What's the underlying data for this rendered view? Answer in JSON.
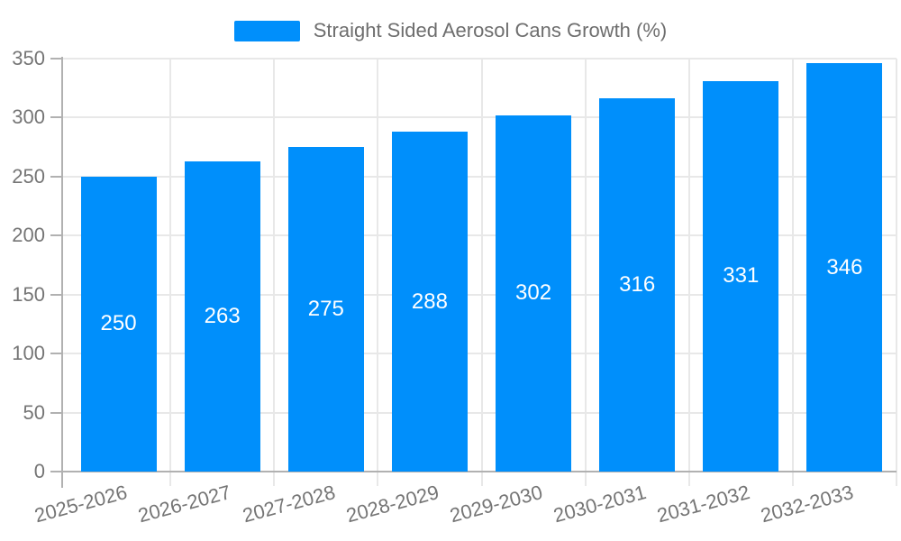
{
  "chart_data": {
    "type": "bar",
    "title": "Straight Sided Aerosol Cans Growth (%)",
    "series": [
      {
        "name": "Straight Sided Aerosol Cans Growth (%)",
        "values": [
          250,
          263,
          275,
          288,
          302,
          316,
          331,
          346
        ]
      }
    ],
    "categories": [
      "2025-2026",
      "2026-2027",
      "2027-2028",
      "2028-2029",
      "2029-2030",
      "2030-2031",
      "2031-2032",
      "2032-2033"
    ],
    "data_labels": [
      "250",
      "263",
      "275",
      "288",
      "302",
      "316",
      "331",
      "346"
    ],
    "xlabel": "",
    "ylabel": "",
    "ylim": [
      0,
      350
    ],
    "ytick_step": 50,
    "ytick_labels": [
      "0",
      "50",
      "100",
      "150",
      "200",
      "250",
      "300",
      "350"
    ],
    "grid": true,
    "legend_position": "top",
    "colors": {
      "bar": "#008FFB",
      "bar_value_label": "#ffffff",
      "axis_label_text": "#757575",
      "legend_text": "#6e6e6e",
      "gridline": "#e8e8e8",
      "axis_line": "#b1b1b1"
    }
  },
  "legend": {
    "label": "Straight Sided Aerosol Cans Growth (%)"
  }
}
